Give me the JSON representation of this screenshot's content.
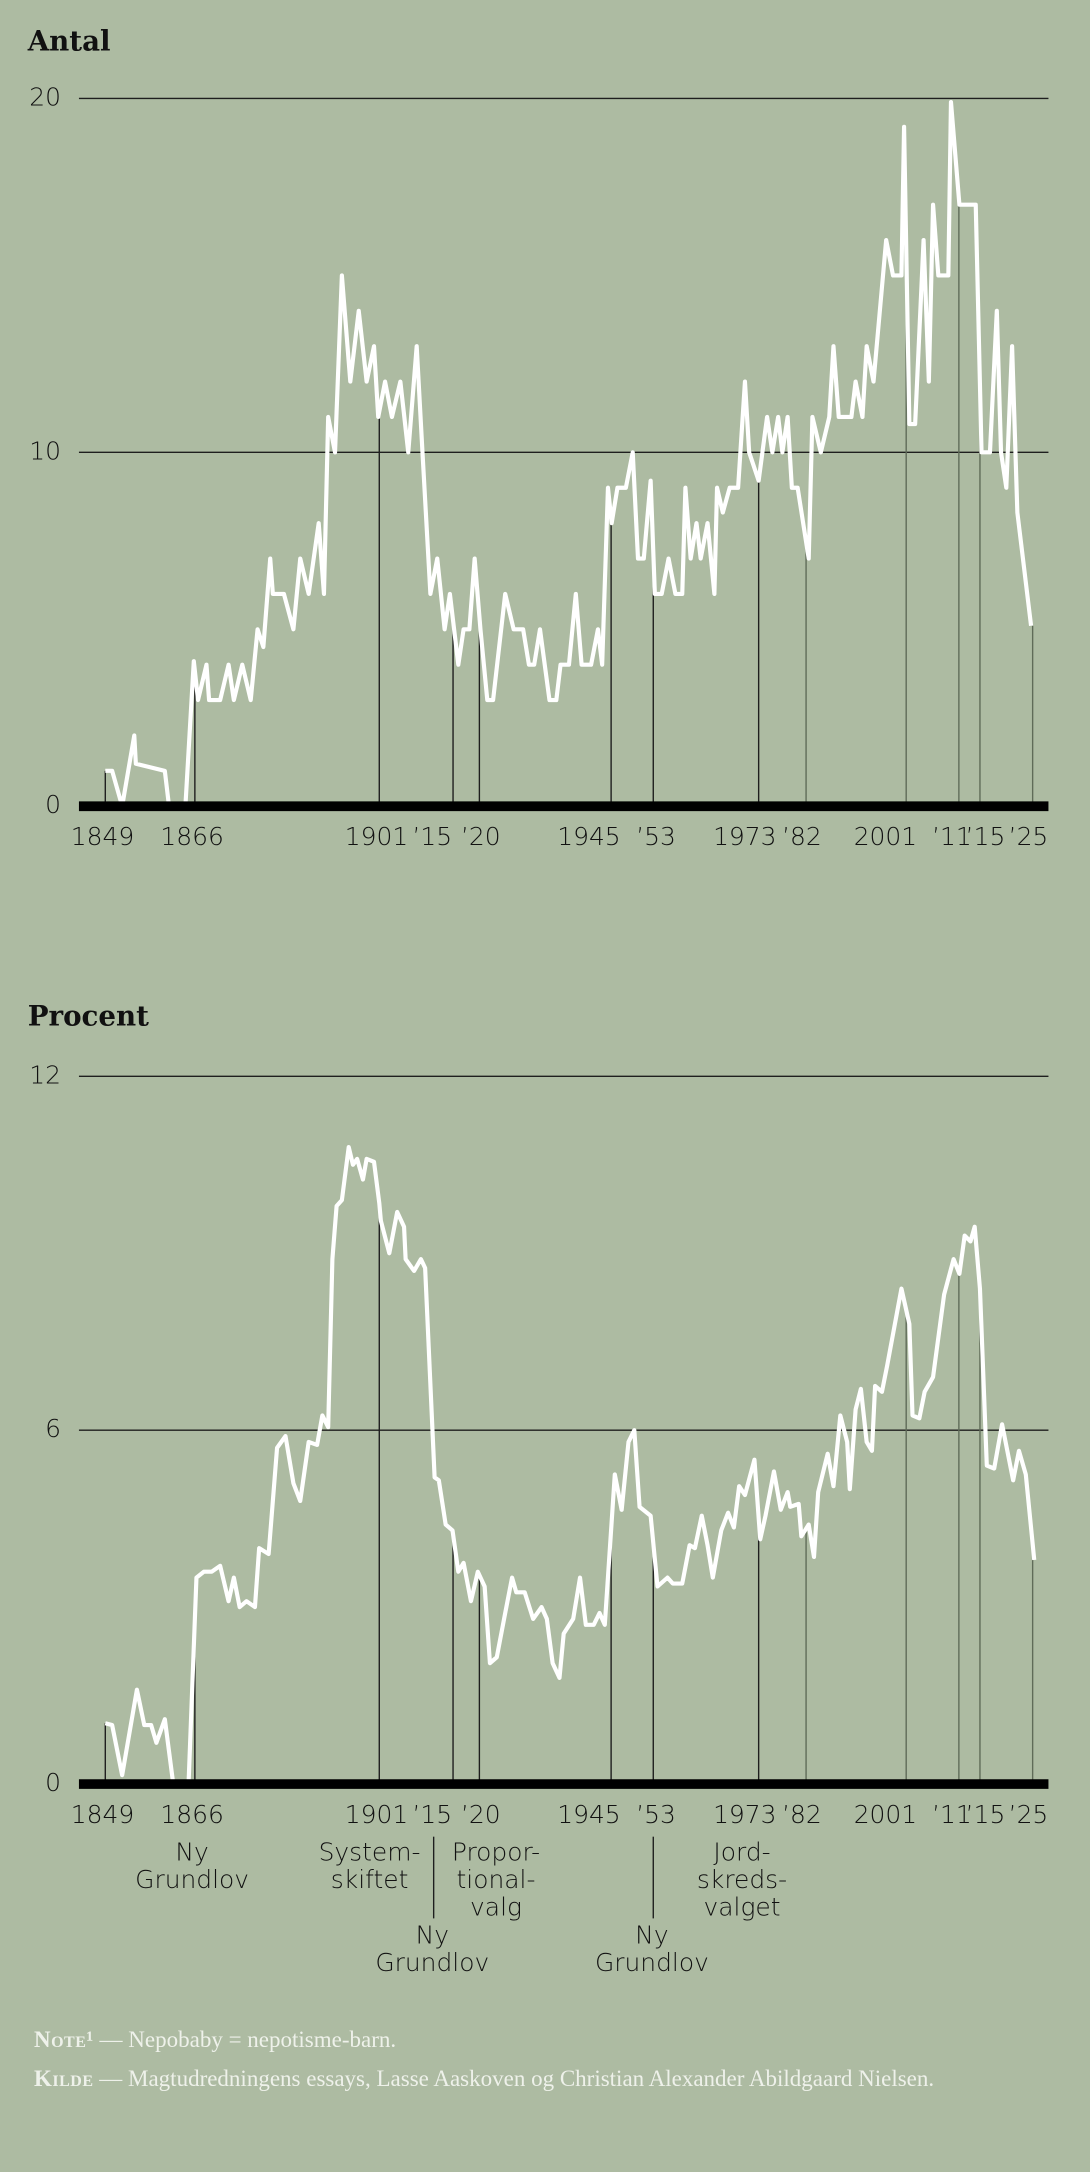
{
  "chart_data": [
    {
      "type": "line",
      "title": "Antal",
      "x": [
        1849,
        1850.3,
        1852.2,
        1854.5,
        1854.8,
        1860.3,
        1861.1,
        1864.2,
        1865.8,
        1866.6,
        1868.2,
        1868.7,
        1870.8,
        1872.4,
        1873.4,
        1875.0,
        1876.6,
        1877.9,
        1879.0,
        1880.3,
        1880.8,
        1882.9,
        1884.7,
        1886.0,
        1887.6,
        1889.5,
        1890.5,
        1891.3,
        1892.6,
        1893.9,
        1895.5,
        1897.1,
        1898.6,
        1900.0,
        1900.8,
        1902.1,
        1903.4,
        1905.0,
        1906.5,
        1908.1,
        1909.2,
        1910.7,
        1912.0,
        1913.4,
        1914.4,
        1916.0,
        1917.0,
        1918.1,
        1919.1,
        1920.2,
        1921.5,
        1922.6,
        1924.9,
        1926.5,
        1928.3,
        1929.4,
        1930.4,
        1931.5,
        1933.3,
        1934.6,
        1935.4,
        1937.0,
        1938.3,
        1939.4,
        1941.2,
        1942.5,
        1943.3,
        1944.4,
        1945.1,
        1946.2,
        1947.8,
        1949.1,
        1950.1,
        1951.2,
        1952.5,
        1953.3,
        1954.6,
        1955.9,
        1957.2,
        1958.5,
        1959.1,
        1960.1,
        1961.2,
        1962.0,
        1963.3,
        1964.6,
        1965.1,
        1966.2,
        1967.5,
        1969.1,
        1970.4,
        1971.2,
        1973.0,
        1974.6,
        1975.6,
        1976.7,
        1977.5,
        1978.5,
        1979.3,
        1980.4,
        1982.5,
        1983.2,
        1984.8,
        1986.4,
        1987.2,
        1988.2,
        1990.6,
        1991.4,
        1992.7,
        1993.5,
        1994.8,
        1997.2,
        1998.5,
        2000.1,
        2000.6,
        2001.6,
        2002.7,
        2004.3,
        2005.3,
        2006.1,
        2007.1,
        2009.0,
        2009.5,
        2011.1,
        2014.2,
        2015.3,
        2016.9,
        2018.2,
        2019.0,
        2020.0,
        2021.1,
        2022.1,
        2024.7
      ],
      "values": [
        1,
        1,
        0,
        2,
        1.2,
        1,
        0,
        0,
        4.1,
        3,
        4,
        3,
        3,
        4,
        3,
        4,
        3,
        5,
        4.5,
        7,
        6,
        6,
        5,
        7,
        6,
        8,
        6,
        11,
        10,
        15,
        12,
        14,
        12,
        13,
        11,
        12,
        11,
        12,
        10,
        13,
        10,
        6,
        7,
        5,
        6,
        4,
        5,
        5,
        7,
        5,
        3,
        3,
        6,
        5,
        5,
        4,
        4,
        5,
        3,
        3,
        4,
        4,
        6,
        4,
        4,
        5,
        4,
        9,
        8,
        9,
        9,
        10,
        7,
        7,
        9.2,
        6,
        6,
        7,
        6,
        6,
        9,
        7,
        8,
        7,
        8,
        6,
        9,
        8.3,
        9,
        9,
        12,
        10,
        9.2,
        11,
        10,
        11,
        10,
        11,
        9,
        9,
        7,
        11,
        10,
        11,
        13,
        11,
        11,
        12,
        11,
        13,
        12,
        16,
        15,
        15,
        19.2,
        10.8,
        10.8,
        16,
        12,
        17,
        15,
        15,
        19.9,
        17,
        17,
        10,
        10,
        14,
        10,
        9,
        13,
        8.3,
        5.1
      ],
      "color": "#ffffff",
      "xlim": [
        1844,
        2028
      ],
      "xticks": [
        1849,
        1866,
        1901,
        {
          "value": 1915,
          "label": "’15"
        },
        {
          "value": 1920,
          "label": "’20"
        },
        1945,
        {
          "value": 1953,
          "label": "’53"
        },
        1973,
        {
          "value": 1982,
          "label": "’82"
        },
        2001,
        {
          "value": 2011,
          "label": "’11"
        },
        {
          "value": 2015,
          "label": "’15"
        },
        {
          "value": 2025,
          "label": "’25"
        }
      ],
      "ylim": [
        0,
        20
      ],
      "yticks": [
        0,
        10,
        20
      ],
      "grid": true
    },
    {
      "type": "line",
      "title": "Procent",
      "x": [
        1849,
        1850.3,
        1852.2,
        1855.0,
        1856.4,
        1857.7,
        1858.7,
        1860.3,
        1861.9,
        1864.8,
        1866.3,
        1867.7,
        1869.2,
        1870.8,
        1872.4,
        1873.4,
        1874.5,
        1875.8,
        1877.4,
        1878.2,
        1880.0,
        1881.6,
        1883.2,
        1884.7,
        1886.0,
        1887.6,
        1889.2,
        1890.2,
        1891.3,
        1892.1,
        1892.9,
        1893.9,
        1895.2,
        1896.0,
        1896.8,
        1897.9,
        1898.6,
        1900.0,
        1901.0,
        1901.3,
        1902.9,
        1904.4,
        1905.7,
        1906.0,
        1907.6,
        1908.9,
        1909.7,
        1911.5,
        1912.3,
        1913.6,
        1914.9,
        1916.0,
        1917.0,
        1918.4,
        1919.7,
        1921.0,
        1922.0,
        1923.3,
        1924.9,
        1926.2,
        1927.0,
        1928.6,
        1930.2,
        1931.8,
        1932.8,
        1933.9,
        1935.2,
        1936.0,
        1937.8,
        1939.1,
        1940.2,
        1941.7,
        1942.8,
        1943.8,
        1945.7,
        1947.0,
        1948.3,
        1949.4,
        1950.4,
        1952.5,
        1953.8,
        1955.7,
        1956.7,
        1958.5,
        1959.9,
        1960.9,
        1962.2,
        1963.3,
        1964.3,
        1965.9,
        1967.2,
        1968.3,
        1969.3,
        1970.4,
        1972.2,
        1973.3,
        1974.3,
        1975.9,
        1977.2,
        1978.5,
        1979.0,
        1980.6,
        1981.1,
        1982.5,
        1983.5,
        1984.3,
        1986.1,
        1987.2,
        1988.5,
        1989.8,
        1990.3,
        1991.4,
        1992.4,
        1993.5,
        1994.5,
        1995.1,
        1996.4,
        1997.4,
        2000.1,
        2001.6,
        2002.2,
        2003.5,
        2004.5,
        2006.1,
        2008.2,
        2010.0,
        2011.1,
        2012.1,
        2013.2,
        2014.0,
        2015.0,
        2016.3,
        2017.7,
        2019.2,
        2021.3,
        2022.4,
        2023.7,
        2025.3
      ],
      "values": [
        1.03,
        1.0,
        0.15,
        1.6,
        1.0,
        1.0,
        0.7,
        1.1,
        0,
        0,
        3.5,
        3.6,
        3.6,
        3.7,
        3.1,
        3.5,
        3.0,
        3.1,
        3.0,
        4.0,
        3.9,
        5.7,
        5.9,
        5.1,
        4.8,
        5.8,
        5.75,
        6.25,
        6.05,
        8.9,
        9.8,
        9.9,
        10.8,
        10.5,
        10.6,
        10.25,
        10.6,
        10.55,
        9.85,
        9.55,
        9.0,
        9.7,
        9.45,
        8.9,
        8.7,
        8.9,
        8.75,
        5.2,
        5.15,
        4.4,
        4.3,
        3.6,
        3.75,
        3.1,
        3.6,
        3.35,
        2.05,
        2.15,
        2.9,
        3.5,
        3.25,
        3.25,
        2.8,
        3.0,
        2.8,
        2.05,
        1.8,
        2.55,
        2.8,
        3.5,
        2.7,
        2.7,
        2.9,
        2.7,
        5.25,
        4.65,
        5.8,
        6.0,
        4.7,
        4.55,
        3.35,
        3.5,
        3.4,
        3.4,
        4.05,
        4.0,
        4.55,
        4.05,
        3.5,
        4.3,
        4.6,
        4.35,
        5.05,
        4.9,
        5.5,
        4.15,
        4.55,
        5.3,
        4.65,
        4.95,
        4.7,
        4.75,
        4.2,
        4.4,
        3.85,
        4.95,
        5.6,
        5.05,
        6.25,
        5.8,
        5.0,
        6.35,
        6.7,
        5.8,
        5.65,
        6.75,
        6.65,
        7.1,
        8.4,
        7.8,
        6.25,
        6.2,
        6.65,
        6.9,
        8.3,
        8.9,
        8.65,
        9.3,
        9.2,
        9.45,
        8.4,
        5.4,
        5.35,
        6.1,
        5.15,
        5.65,
        5.25,
        3.8
      ],
      "color": "#ffffff",
      "xlim": [
        1844,
        2028
      ],
      "xticks": [
        1849,
        1866,
        1901,
        {
          "value": 1915,
          "label": "’15"
        },
        {
          "value": 1920,
          "label": "’20"
        },
        1945,
        {
          "value": 1953,
          "label": "’53"
        },
        1973,
        {
          "value": 1982,
          "label": "’82"
        },
        2001,
        {
          "value": 2011,
          "label": "’11"
        },
        {
          "value": 2015,
          "label": "’15"
        },
        {
          "value": 2025,
          "label": "’25"
        }
      ],
      "ylim": [
        0,
        12
      ],
      "yticks": [
        0,
        6,
        12
      ],
      "grid": true,
      "annotations": [
        {
          "x": 1866,
          "lines": [
            "Ny",
            "Grundlov"
          ]
        },
        {
          "x": 1901,
          "lines": [
            "System-",
            "skiftet"
          ]
        },
        {
          "x": 1915,
          "lines": [
            "Ny",
            "Grundlov"
          ]
        },
        {
          "x": 1920,
          "lines": [
            "Propor-",
            "tional-",
            "valg"
          ]
        },
        {
          "x": 1953,
          "lines": [
            "Ny",
            "Grundlov"
          ]
        },
        {
          "x": 1973,
          "lines": [
            "Jord-",
            "skreds-",
            "valget"
          ]
        }
      ]
    }
  ],
  "notes": [
    {
      "label": "Note¹",
      "text": "— Nepobaby = nepotisme-barn."
    },
    {
      "label": "Kilde",
      "text": "— Magtudredningens essays, Lasse Aaskoven og Christian Alexander Abildgaard Nielsen."
    }
  ]
}
